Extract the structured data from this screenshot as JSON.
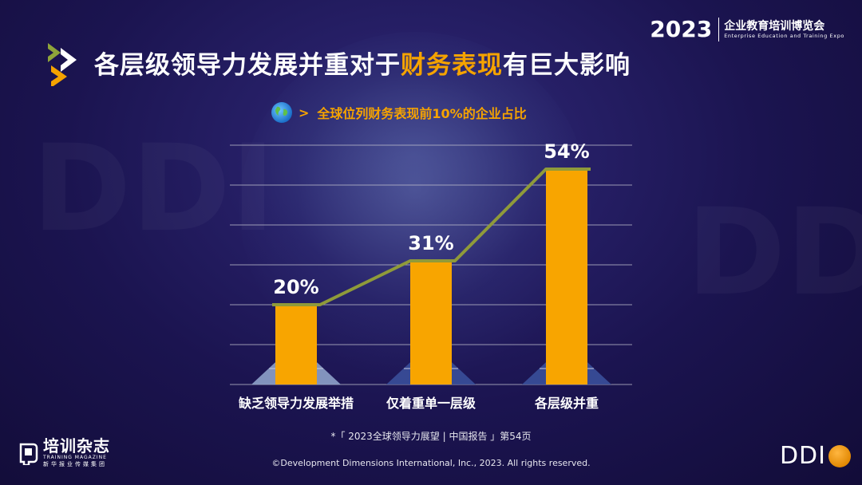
{
  "title": {
    "part1": "各层级领导力发展并重对于",
    "highlight": "财务表现",
    "part2": "有巨大影响"
  },
  "expo": {
    "year": "2023",
    "name_cn": "企业教育培训博览会",
    "name_en": "Enterprise Education and Training Expo"
  },
  "watermark": "DDI",
  "chart_data": {
    "type": "bar",
    "subtitle": "全球位列财务表现前10%的企业占比",
    "categories": [
      "缺乏领导力发展举措",
      "仅着重单一层级",
      "各层级并重"
    ],
    "values": [
      20,
      31,
      54
    ],
    "value_labels": [
      "20%",
      "31%",
      "54%"
    ],
    "ylim": [
      0,
      60
    ],
    "gridlines": true,
    "connecting_line": true,
    "colors": {
      "bar": "#f8a500",
      "line": "#8f9a3a",
      "pyramid_light": "#8ea1c9",
      "pyramid_dark": "#3a4f9a"
    }
  },
  "footnote": "*「 2023全球领导力展望 | 中国报告 」第54页",
  "copyright": "©Development Dimensions International, Inc., 2023. All rights reserved.",
  "logos": {
    "training_magazine_cn": "培训杂志",
    "training_magazine_en": "TRAINING MAGAZINE",
    "training_magazine_sub": "新华报业传媒集团",
    "ddi": "DDI"
  },
  "colors": {
    "accent": "#f5a300",
    "background": "#1b1450"
  }
}
